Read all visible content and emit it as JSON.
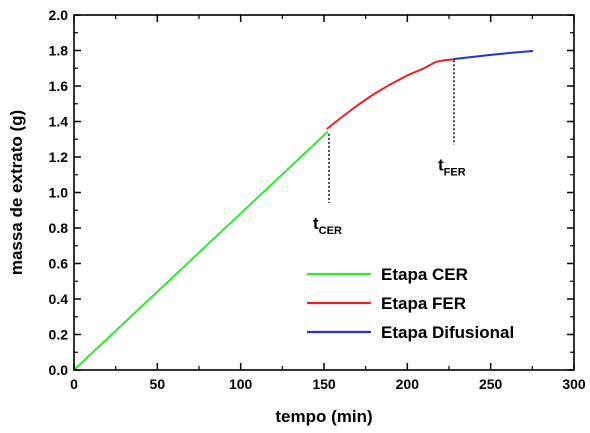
{
  "chart_data": {
    "type": "line",
    "xlabel": "tempo (min)",
    "ylabel": "massa de extrato (g)",
    "xlim": [
      0,
      300
    ],
    "ylim": [
      0.0,
      2.0
    ],
    "x_ticks": [
      0,
      50,
      100,
      150,
      200,
      250,
      300
    ],
    "y_ticks": [
      0.0,
      0.2,
      0.4,
      0.6,
      0.8,
      1.0,
      1.2,
      1.4,
      1.6,
      1.8,
      2.0
    ],
    "x_tick_labels": [
      "0",
      "50",
      "100",
      "150",
      "200",
      "250",
      "300"
    ],
    "y_tick_labels": [
      "0.0",
      "0.2",
      "0.4",
      "0.6",
      "0.8",
      "1.0",
      "1.2",
      "1.4",
      "1.6",
      "1.8",
      "2.0"
    ],
    "grid": false,
    "legend_position": "bottom-right",
    "series": [
      {
        "name": "Etapa CER",
        "color": "#33e633",
        "x": [
          0,
          152
        ],
        "y": [
          0.0,
          1.34
        ]
      },
      {
        "name": "Etapa FER",
        "color": "#e62222",
        "x": [
          152,
          160,
          170,
          180,
          190,
          200,
          210,
          217,
          222,
          228
        ],
        "y": [
          1.36,
          1.42,
          1.49,
          1.555,
          1.61,
          1.66,
          1.7,
          1.735,
          1.745,
          1.75
        ]
      },
      {
        "name": "Etapa Difusional",
        "color": "#2233dd",
        "x": [
          228,
          240,
          250,
          260,
          270,
          275
        ],
        "y": [
          1.752,
          1.765,
          1.775,
          1.785,
          1.793,
          1.797
        ]
      }
    ],
    "annotations": [
      {
        "base": "t",
        "sub": "CER",
        "x": 153,
        "y_top": 1.33,
        "y_bottom": 0.94
      },
      {
        "base": "t",
        "sub": "FER",
        "x": 228,
        "y_top": 1.745,
        "y_bottom": 1.27
      }
    ]
  }
}
